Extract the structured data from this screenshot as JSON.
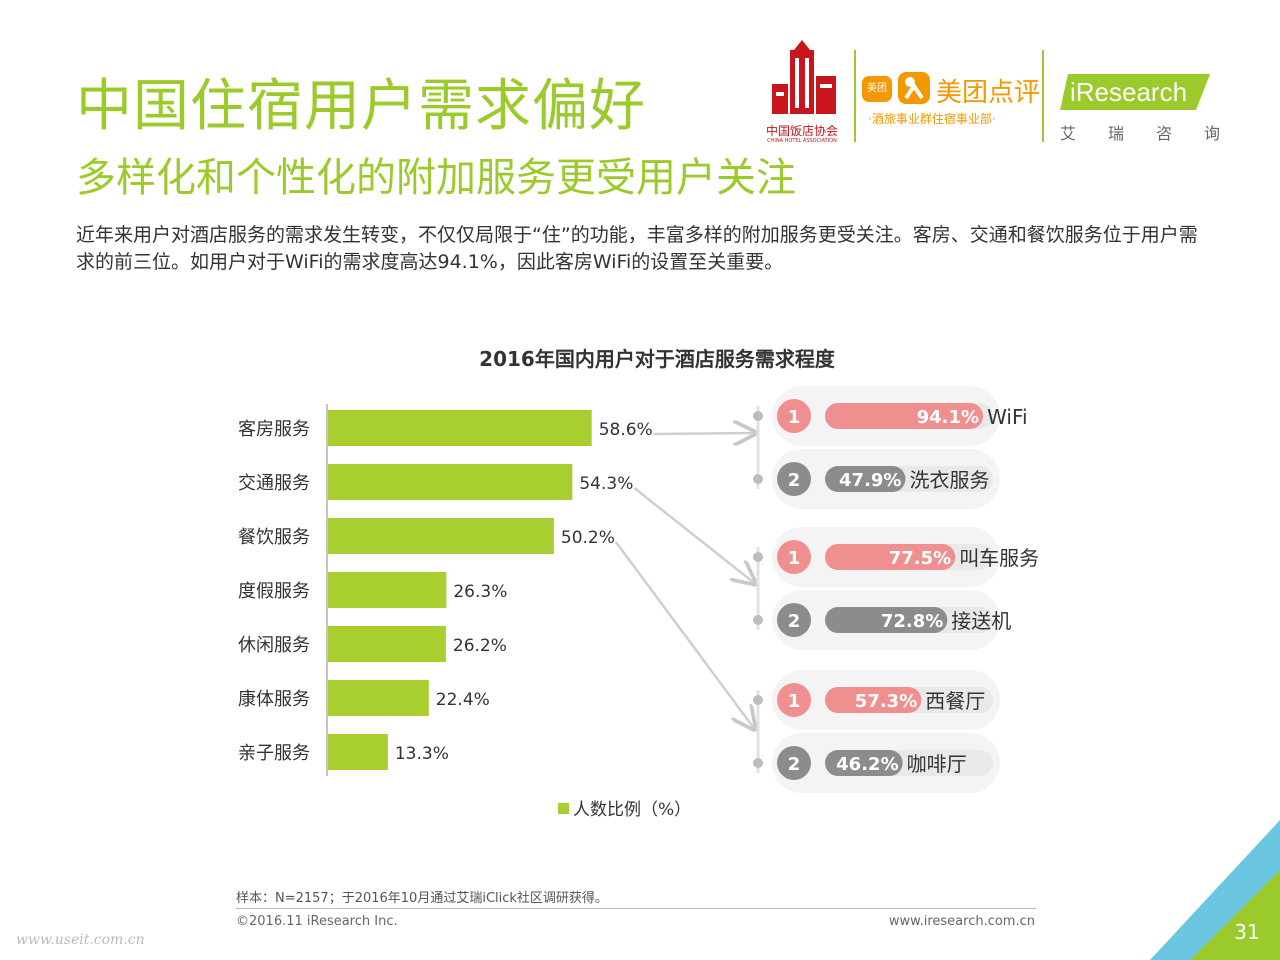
{
  "header": {
    "title": "中国住宿用户需求偏好",
    "subtitle": "多样化和个性化的附加服务更受用户关注",
    "intro": "近年来用户对酒店服务的需求发生转变，不仅仅局限于“住”的功能，丰富多样的附加服务更受关注。客房、交通和餐饮服务位于用户需求的前三位。如用户对于WiFi的需求度高达94.1%，因此客房WiFi的设置至关重要。"
  },
  "logos": {
    "cha_name": "中国饭店协会",
    "cha_en": "CHINA HOTEL ASSOCIATION",
    "meituan_icon": "美团",
    "meituan_name": "美团点评",
    "meituan_sub": "·酒旅事业群住宿事业部·",
    "iresearch_name": "iResearch",
    "iresearch_cn": [
      "艾",
      "瑞",
      "咨",
      "询"
    ]
  },
  "colors": {
    "accent_green": "#9bcb2b",
    "bar_green": "#a8cf2f",
    "rank1_pink": "#f08f8f",
    "rank2_gray": "#8c8c8c"
  },
  "chart_data": {
    "type": "bar",
    "orientation": "horizontal",
    "title": "2016年国内用户对于酒店服务需求程度",
    "categories": [
      "客房服务",
      "交通服务",
      "餐饮服务",
      "度假服务",
      "休闲服务",
      "康体服务",
      "亲子服务"
    ],
    "series": [
      {
        "name": "人数比例（%）",
        "values": [
          58.6,
          54.3,
          50.2,
          26.3,
          26.2,
          22.4,
          13.3
        ]
      }
    ],
    "value_labels": [
      "58.6%",
      "54.3%",
      "50.2%",
      "26.3%",
      "26.2%",
      "22.4%",
      "13.3%"
    ],
    "legend_label": "人数比例（%）",
    "legend_position": "bottom",
    "grid": false,
    "breakdowns": [
      {
        "source": "客房服务",
        "items": [
          {
            "rank": "1",
            "value": 94.1,
            "value_label": "94.1%",
            "name": "WiFi"
          },
          {
            "rank": "2",
            "value": 47.9,
            "value_label": "47.9%",
            "name": "洗衣服务"
          }
        ]
      },
      {
        "source": "交通服务",
        "items": [
          {
            "rank": "1",
            "value": 77.5,
            "value_label": "77.5%",
            "name": "叫车服务"
          },
          {
            "rank": "2",
            "value": 72.8,
            "value_label": "72.8%",
            "name": "接送机"
          }
        ]
      },
      {
        "source": "餐饮服务",
        "items": [
          {
            "rank": "1",
            "value": 57.3,
            "value_label": "57.3%",
            "name": "西餐厅"
          },
          {
            "rank": "2",
            "value": 46.2,
            "value_label": "46.2%",
            "name": "咖啡厅"
          }
        ]
      }
    ]
  },
  "footer": {
    "note": "样本：N=2157；于2016年10月通过艾瑞iClick社区调研获得。",
    "copyright": "©2016.11 iResearch Inc.",
    "website": "www.iresearch.com.cn",
    "watermark": "www.useit.com.cn",
    "page_number": "31"
  }
}
